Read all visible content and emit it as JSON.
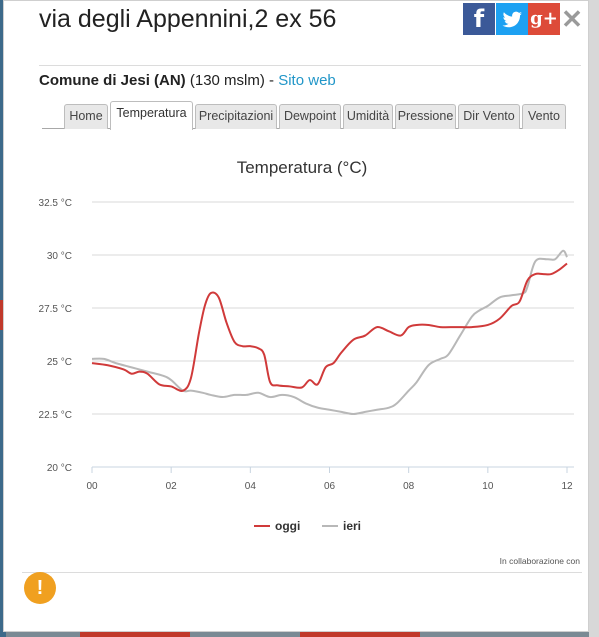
{
  "popup": {
    "title": "via degli Appennini,2 ex 56",
    "subtitle": {
      "name": "Comune di Jesi (AN)",
      "altitude": "(130 mslm)",
      "separator": " - ",
      "link": "Sito web"
    },
    "social": {
      "facebook": "f",
      "twitter": "t",
      "googleplus": "g+",
      "close": "✕"
    },
    "tabs": [
      "Home",
      "Temperatura",
      "Precipitazioni",
      "Dewpoint",
      "Umidità",
      "Pressione",
      "Dir Vento",
      "Vento"
    ],
    "active_tab": 1,
    "credit": "In collaborazione con",
    "alert_icon": "!"
  },
  "colors": {
    "oggi": "#d03a3a",
    "ieri": "#b8b8b8",
    "grid": "#d8d8d8",
    "link": "#2196c8"
  },
  "chart_data": {
    "type": "line",
    "title": "Temperatura (°C)",
    "xlabel": "",
    "ylabel": "",
    "xlim": [
      0,
      12
    ],
    "ylim": [
      20,
      32.5
    ],
    "xticks": [
      "00",
      "02",
      "04",
      "06",
      "08",
      "10",
      "12"
    ],
    "yticks": [
      "20 °C",
      "22.5 °C",
      "25 °C",
      "27.5 °C",
      "30 °C",
      "32.5 °C"
    ],
    "legend_position": "bottom",
    "series": [
      {
        "name": "oggi",
        "x": [
          0,
          0.4,
          0.8,
          1.0,
          1.2,
          1.4,
          1.7,
          2.0,
          2.3,
          2.5,
          2.7,
          2.85,
          3.0,
          3.2,
          3.4,
          3.6,
          3.8,
          4.0,
          4.2,
          4.35,
          4.5,
          4.7,
          5.0,
          5.3,
          5.5,
          5.7,
          5.9,
          6.1,
          6.3,
          6.6,
          6.9,
          7.2,
          7.5,
          7.8,
          8.0,
          8.2,
          8.5,
          8.8,
          9.2,
          9.6,
          10.0,
          10.3,
          10.6,
          10.8,
          11.0,
          11.2,
          11.4,
          11.6,
          11.8,
          12.0
        ],
        "values": [
          24.9,
          24.8,
          24.6,
          24.4,
          24.5,
          24.4,
          23.9,
          23.8,
          23.6,
          24.2,
          26.3,
          27.6,
          28.2,
          28.0,
          26.8,
          25.9,
          25.7,
          25.7,
          25.6,
          25.3,
          24.0,
          23.85,
          23.8,
          23.75,
          24.1,
          23.9,
          24.7,
          24.9,
          25.4,
          26.0,
          26.2,
          26.6,
          26.4,
          26.2,
          26.6,
          26.7,
          26.7,
          26.6,
          26.6,
          26.6,
          26.7,
          27.0,
          27.6,
          27.8,
          28.8,
          29.1,
          29.1,
          29.1,
          29.3,
          29.6
        ]
      },
      {
        "name": "ieri",
        "x": [
          0,
          0.3,
          0.6,
          1.0,
          1.4,
          1.8,
          2.0,
          2.3,
          2.5,
          2.8,
          3.0,
          3.3,
          3.6,
          3.9,
          4.2,
          4.5,
          4.8,
          5.1,
          5.4,
          5.7,
          6.0,
          6.3,
          6.6,
          6.9,
          7.2,
          7.5,
          7.7,
          8.0,
          8.2,
          8.5,
          8.8,
          9.0,
          9.3,
          9.6,
          9.8,
          10.0,
          10.3,
          10.6,
          10.9,
          11.0,
          11.2,
          11.5,
          11.7,
          11.9,
          12.0
        ],
        "values": [
          25.1,
          25.1,
          24.9,
          24.7,
          24.5,
          24.3,
          24.1,
          23.6,
          23.6,
          23.5,
          23.4,
          23.3,
          23.4,
          23.4,
          23.5,
          23.3,
          23.4,
          23.3,
          23.0,
          22.8,
          22.7,
          22.6,
          22.5,
          22.6,
          22.7,
          22.8,
          23.0,
          23.6,
          24.0,
          24.8,
          25.1,
          25.3,
          26.2,
          27.1,
          27.4,
          27.6,
          28.0,
          28.1,
          28.2,
          28.5,
          29.7,
          29.8,
          29.8,
          30.2,
          29.9
        ]
      }
    ]
  }
}
